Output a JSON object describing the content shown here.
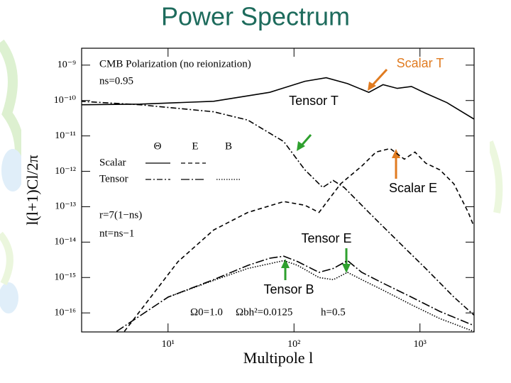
{
  "chart_data": {
    "type": "line",
    "title": "Power Spectrum",
    "xlabel": "Multipole  l",
    "ylabel": "l(l+1)Cl/2π",
    "log_x": true,
    "log_y": true,
    "xlim": [
      2.06,
      2690
    ],
    "ylim": [
      2.9e-17,
      3e-09
    ],
    "xticks": [
      {
        "value": 10,
        "label": "10¹"
      },
      {
        "value": 100,
        "label": "10²"
      },
      {
        "value": 1000,
        "label": "10³"
      }
    ],
    "yticks": [
      {
        "value": 1e-09,
        "label": "10⁻⁹"
      },
      {
        "value": 1e-10,
        "label": "10⁻¹⁰"
      },
      {
        "value": 1e-11,
        "label": "10⁻¹¹"
      },
      {
        "value": 1e-12,
        "label": "10⁻¹²"
      },
      {
        "value": 1e-13,
        "label": "10⁻¹³"
      },
      {
        "value": 1e-14,
        "label": "10⁻¹⁴"
      },
      {
        "value": 1e-15,
        "label": "10⁻¹⁵"
      },
      {
        "value": 1e-16,
        "label": "10⁻¹⁶"
      }
    ],
    "annotations": [
      "CMB  Polarization  (no  reionization)",
      "ns=0.95",
      "r=7(1−ns)",
      "nt=ns−1",
      "Ω0=1.0",
      "Ωbh²=0.0125",
      "h=0.5"
    ],
    "legend": {
      "columns": [
        "Θ",
        "E",
        "B"
      ],
      "rows": [
        "Scalar",
        "Tensor"
      ]
    },
    "series": [
      {
        "name": "Scalar T",
        "color": "#000000",
        "dash": "solid",
        "x": [
          2,
          6,
          23,
          64,
          122,
          180,
          266,
          393,
          509,
          661,
          856,
          1110,
          1637,
          2680
        ],
        "values": [
          7.6e-11,
          7.9e-11,
          9.5e-11,
          1.7e-10,
          3.5e-10,
          4.4e-10,
          3e-10,
          1.7e-10,
          2.8e-10,
          2.2e-10,
          2.5e-10,
          1.6e-10,
          8.7e-11,
          3e-11
        ]
      },
      {
        "name": "Tensor T",
        "color": "#000000",
        "dash": "dash-dot",
        "x": [
          2,
          6,
          23,
          43,
          83,
          122,
          169,
          205,
          250,
          393,
          661,
          1110,
          1860,
          2680
        ],
        "values": [
          9.5e-11,
          7.6e-11,
          4.8e-11,
          2.8e-11,
          6.9e-12,
          1.1e-12,
          3.5e-13,
          5.5e-13,
          3.5e-13,
          6.9e-14,
          1.1e-14,
          1.8e-15,
          2.8e-16,
          8.7e-17
        ]
      },
      {
        "name": "Scalar E",
        "color": "#000000",
        "dash": "dashed",
        "x": [
          4.5,
          12,
          23,
          43,
          83,
          122,
          158,
          234,
          345,
          448,
          580,
          751,
          913,
          1110,
          1440,
          1860,
          2420,
          2680
        ],
        "values": [
          3e-17,
          2.8e-15,
          2.2e-14,
          6.9e-14,
          1.4e-13,
          1.1e-13,
          6.9e-14,
          4.4e-13,
          1.4e-12,
          3.5e-12,
          4.4e-12,
          2.2e-12,
          3.5e-12,
          1.7e-12,
          1.1e-12,
          4.4e-13,
          6.9e-14,
          2.8e-14
        ]
      },
      {
        "name": "Tensor E",
        "color": "#000000",
        "dash": "long-dash-dot",
        "x": [
          3.9,
          10,
          23,
          43,
          64,
          83,
          107,
          158,
          205,
          266,
          345,
          509,
          856,
          1440,
          2680
        ],
        "values": [
          3e-17,
          2.8e-16,
          8.7e-16,
          2.2e-15,
          3.5e-15,
          4e-15,
          2.8e-15,
          1.4e-15,
          1.8e-15,
          3e-15,
          1.4e-15,
          6.9e-16,
          2.8e-16,
          1.1e-16,
          4.4e-17
        ]
      },
      {
        "name": "Tensor B",
        "color": "#000000",
        "dash": "dotted",
        "x": [
          10,
          23,
          43,
          83,
          107,
          158,
          205,
          266,
          345,
          509,
          856,
          1440,
          2680
        ],
        "values": [
          2.8e-16,
          8.3e-16,
          1.8e-15,
          3e-15,
          2.2e-15,
          1e-15,
          8.7e-16,
          1.4e-15,
          8.7e-16,
          4.4e-16,
          1.7e-16,
          6.9e-17,
          3e-17
        ]
      }
    ]
  }
}
